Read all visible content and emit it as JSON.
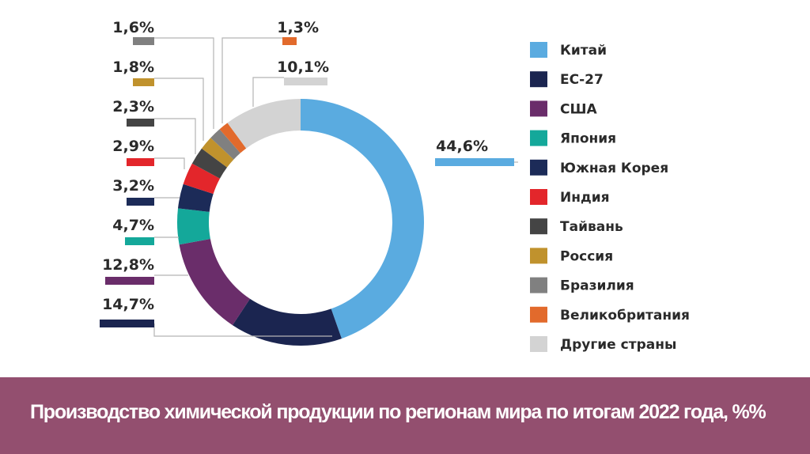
{
  "chart_data": {
    "type": "pie",
    "donut": true,
    "title": "Производство химической продукции по регионам мира по итогам 2022 года, %%",
    "legend_position": "right",
    "categories": [
      "Китай",
      "ЕС-27",
      "США",
      "Япония",
      "Южная Корея",
      "Индия",
      "Тайвань",
      "Россия",
      "Бразилия",
      "Великобритания",
      "Другие страны"
    ],
    "values": [
      44.6,
      14.7,
      12.8,
      4.7,
      3.2,
      2.9,
      2.3,
      1.8,
      1.6,
      1.3,
      10.1
    ],
    "data_labels": [
      "44,6%",
      "14,7%",
      "12,8%",
      "4,7%",
      "3,2%",
      "2,9%",
      "2,3%",
      "1,8%",
      "1,6%",
      "1,3%",
      "10,1%"
    ],
    "colors": [
      "#5aabe0",
      "#1b2550",
      "#6a2d6a",
      "#14a89a",
      "#1c2b58",
      "#e3262b",
      "#444444",
      "#c0922d",
      "#808080",
      "#e26a2c",
      "#d3d3d3"
    ]
  },
  "banner_color": "#934f6f"
}
